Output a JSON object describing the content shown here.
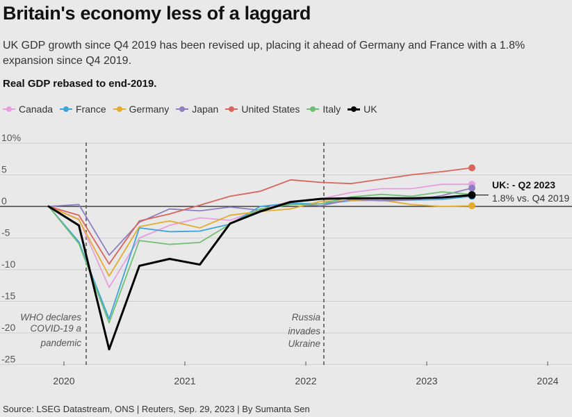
{
  "header": {
    "title": "Britain's economy less of a laggard",
    "subtitle": "UK GDP growth since Q4 2019 has been revised up, placing it ahead of Germany and France with a 1.8% expansion since Q4 2019.",
    "chart_heading": "Real GDP rebased to end-2019."
  },
  "legend": [
    {
      "name": "Canada",
      "color": "#e79ee0"
    },
    {
      "name": "France",
      "color": "#3ca4d8"
    },
    {
      "name": "Germany",
      "color": "#e3ac2c"
    },
    {
      "name": "Japan",
      "color": "#8f7dc1"
    },
    {
      "name": "United States",
      "color": "#d9645c"
    },
    {
      "name": "Italy",
      "color": "#6fbf73"
    },
    {
      "name": "UK",
      "color": "#000000"
    }
  ],
  "annotations": {
    "covid_line1": "WHO declares",
    "covid_line2": "COVID-19 a",
    "covid_line3": "pandemic",
    "ukraine_line1": "Russia",
    "ukraine_line2": "invades",
    "ukraine_line3": "Ukraine",
    "uk_label_title": "UK: - Q2 2023",
    "uk_label_value": "1.8% vs. Q4 2019"
  },
  "footer": {
    "source": "Source: LSEG Datastream, ONS | Reuters, Sep. 29, 2023 | By Sumanta Sen"
  },
  "chart_data": {
    "type": "line",
    "title": "Britain's economy less of a laggard",
    "subtitle": "UK GDP growth since Q4 2019 has been revised up, placing it ahead of Germany and France with a 1.8% expansion since Q4 2019.",
    "ylabel": "Real GDP rebased to end-2019.",
    "xlabel": "",
    "x": [
      "Q4 2019",
      "Q1 2020",
      "Q2 2020",
      "Q3 2020",
      "Q4 2020",
      "Q1 2021",
      "Q2 2021",
      "Q3 2021",
      "Q4 2021",
      "Q1 2022",
      "Q2 2022",
      "Q3 2022",
      "Q4 2022",
      "Q1 2023",
      "Q2 2023"
    ],
    "x_ticks": [
      "2020",
      "2021",
      "2022",
      "2023",
      "2024"
    ],
    "y_ticks": [
      "10%",
      "5",
      "0",
      "-5",
      "-10",
      "-15",
      "-20",
      "-25"
    ],
    "ylim": [
      -25,
      10
    ],
    "grid": true,
    "legend_position": "top",
    "vlines": [
      {
        "label": "WHO declares COVID-19 a pandemic",
        "x": "Mar 2020"
      },
      {
        "label": "Russia invades Ukraine",
        "x": "Feb 2022"
      }
    ],
    "series": [
      {
        "name": "Canada",
        "color": "#e79ee0",
        "values": [
          0,
          -2.0,
          -12.8,
          -5.0,
          -3.0,
          -1.8,
          -2.2,
          -0.5,
          0.8,
          1.2,
          2.2,
          2.8,
          2.8,
          3.5,
          3.5
        ]
      },
      {
        "name": "France",
        "color": "#3ca4d8",
        "values": [
          0,
          -5.6,
          -17.8,
          -3.4,
          -4.0,
          -3.9,
          -2.8,
          0.0,
          0.5,
          0.4,
          0.9,
          1.0,
          1.0,
          1.1,
          1.6
        ]
      },
      {
        "name": "Germany",
        "color": "#e3ac2c",
        "values": [
          0,
          -2.1,
          -11.0,
          -3.2,
          -2.3,
          -3.4,
          -1.4,
          -0.8,
          -0.4,
          0.8,
          0.9,
          1.0,
          0.3,
          0.0,
          0.1
        ]
      },
      {
        "name": "Japan",
        "color": "#8f7dc1",
        "values": [
          0,
          0.3,
          -7.7,
          -2.5,
          -0.4,
          -0.7,
          -0.1,
          -0.6,
          0.4,
          0.1,
          1.1,
          0.9,
          1.0,
          1.7,
          2.9
        ]
      },
      {
        "name": "United States",
        "color": "#d9645c",
        "values": [
          0,
          -1.4,
          -9.1,
          -2.3,
          -1.2,
          0.2,
          1.6,
          2.4,
          4.2,
          3.8,
          3.6,
          4.3,
          5.0,
          5.5,
          6.1
        ]
      },
      {
        "name": "Italy",
        "color": "#6fbf73",
        "values": [
          0,
          -5.9,
          -18.4,
          -5.4,
          -6.0,
          -5.7,
          -2.8,
          -0.4,
          0.3,
          0.4,
          1.5,
          1.9,
          1.6,
          2.3,
          1.9
        ]
      },
      {
        "name": "UK",
        "color": "#000000",
        "values": [
          0,
          -3.0,
          -22.6,
          -9.4,
          -8.3,
          -9.2,
          -2.7,
          -0.8,
          0.7,
          1.2,
          1.3,
          1.3,
          1.3,
          1.4,
          1.8
        ]
      }
    ]
  }
}
